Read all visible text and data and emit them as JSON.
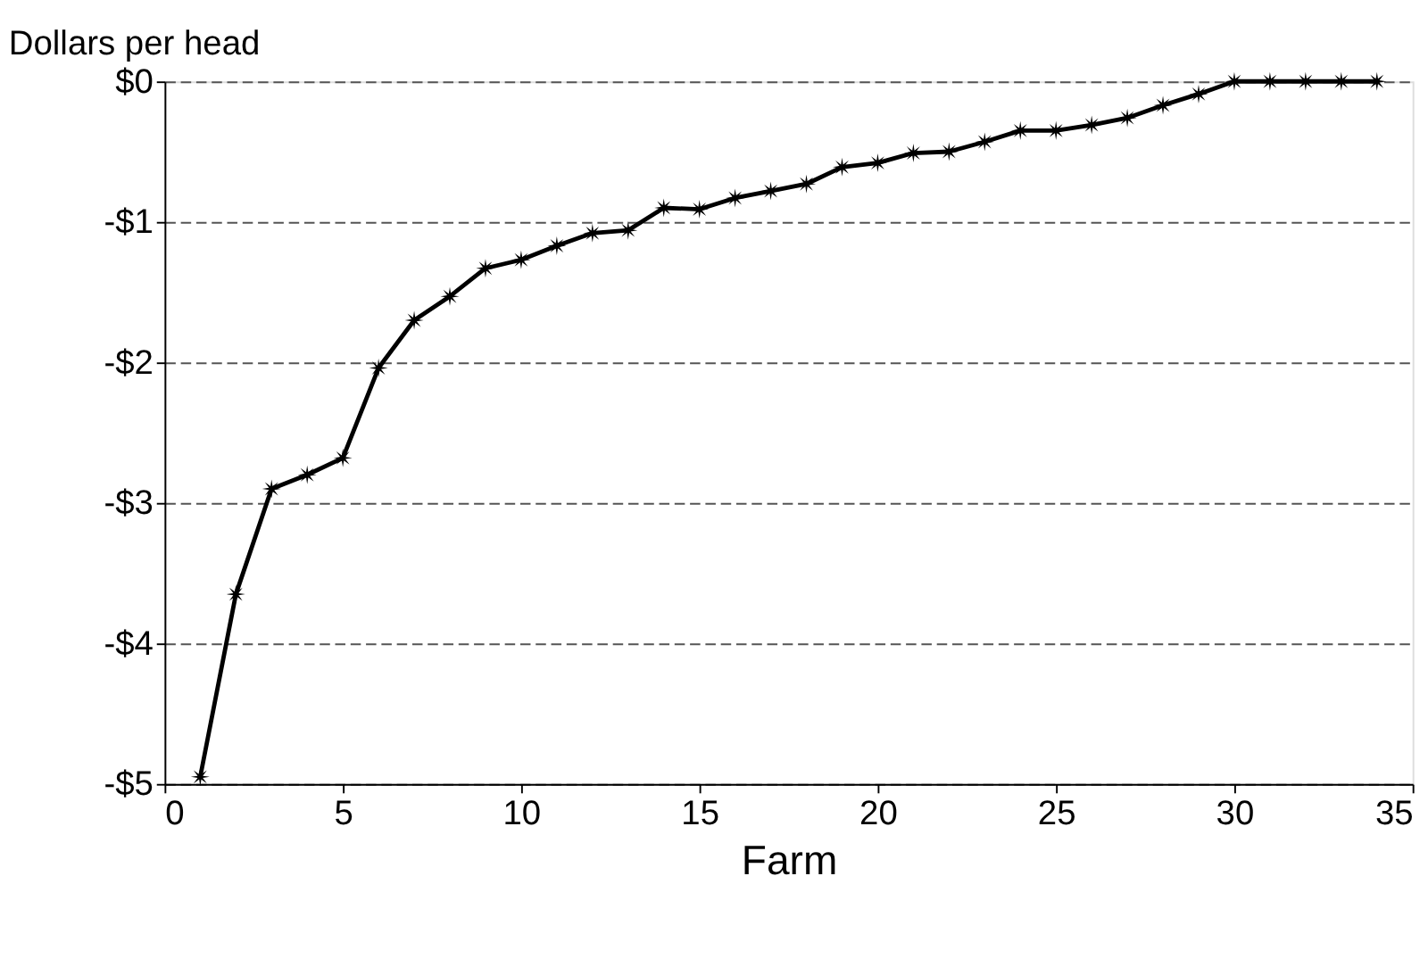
{
  "chart_data": {
    "type": "line",
    "ylabel": "Dollars per head",
    "xlabel": "Farm",
    "x": [
      1,
      2,
      3,
      4,
      5,
      6,
      7,
      8,
      9,
      10,
      11,
      12,
      13,
      14,
      15,
      16,
      17,
      18,
      19,
      20,
      21,
      22,
      23,
      24,
      25,
      26,
      27,
      28,
      29,
      30,
      31,
      32,
      33,
      34
    ],
    "series": [
      {
        "color": "#000000",
        "values": [
          -4.95,
          -3.65,
          -2.9,
          -2.8,
          -2.68,
          -2.04,
          -1.7,
          -1.53,
          -1.33,
          -1.27,
          -1.17,
          -1.08,
          -1.06,
          -0.9,
          -0.91,
          -0.83,
          -0.78,
          -0.73,
          -0.61,
          -0.58,
          -0.51,
          -0.5,
          -0.43,
          -0.35,
          -0.35,
          -0.31,
          -0.26,
          -0.17,
          -0.09,
          0,
          0,
          0,
          0,
          0
        ]
      }
    ],
    "xlim": [
      0,
      35
    ],
    "xticks": [
      0,
      5,
      10,
      15,
      20,
      25,
      30,
      35
    ],
    "ylim": [
      -5,
      0
    ],
    "yticks": [
      {
        "value": -5,
        "label": "-$5"
      },
      {
        "value": -4,
        "label": "-$4"
      },
      {
        "value": -3,
        "label": "-$3"
      },
      {
        "value": -2,
        "label": "-$2"
      },
      {
        "value": -1,
        "label": "-$1"
      },
      {
        "value": 0,
        "label": "$0"
      }
    ],
    "grid": "y",
    "marker": "star",
    "line_style": "solid"
  }
}
